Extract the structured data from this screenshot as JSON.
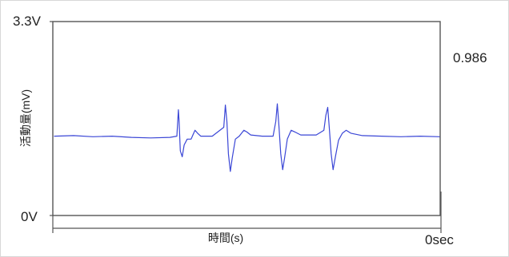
{
  "chart_data": {
    "type": "line",
    "title": "",
    "ylabel": "活動量(mV)",
    "xlabel": "時間(s)",
    "y_top_label": "3.3V",
    "y_bottom_label": "0V",
    "x_end_label": "0sec",
    "current_value": "0.986",
    "ylim": [
      0,
      3.3
    ],
    "grid": false,
    "series": [
      {
        "color": "#3a46d6",
        "points": [
          [
            0.0,
            1.35
          ],
          [
            0.05,
            1.36
          ],
          [
            0.1,
            1.34
          ],
          [
            0.15,
            1.35
          ],
          [
            0.2,
            1.33
          ],
          [
            0.25,
            1.32
          ],
          [
            0.3,
            1.33
          ],
          [
            0.318,
            1.35
          ],
          [
            0.322,
            1.8
          ],
          [
            0.324,
            1.6
          ],
          [
            0.327,
            1.1
          ],
          [
            0.332,
            1.0
          ],
          [
            0.337,
            1.2
          ],
          [
            0.345,
            1.3
          ],
          [
            0.355,
            1.3
          ],
          [
            0.365,
            1.45
          ],
          [
            0.372,
            1.4
          ],
          [
            0.38,
            1.35
          ],
          [
            0.41,
            1.35
          ],
          [
            0.44,
            1.5
          ],
          [
            0.444,
            1.88
          ],
          [
            0.448,
            1.6
          ],
          [
            0.452,
            1.05
          ],
          [
            0.457,
            0.75
          ],
          [
            0.462,
            0.98
          ],
          [
            0.47,
            1.3
          ],
          [
            0.48,
            1.35
          ],
          [
            0.492,
            1.45
          ],
          [
            0.5,
            1.42
          ],
          [
            0.51,
            1.37
          ],
          [
            0.54,
            1.35
          ],
          [
            0.568,
            1.35
          ],
          [
            0.575,
            1.6
          ],
          [
            0.579,
            1.9
          ],
          [
            0.583,
            1.55
          ],
          [
            0.588,
            1.05
          ],
          [
            0.593,
            0.78
          ],
          [
            0.598,
            0.98
          ],
          [
            0.605,
            1.3
          ],
          [
            0.615,
            1.45
          ],
          [
            0.625,
            1.42
          ],
          [
            0.64,
            1.37
          ],
          [
            0.68,
            1.37
          ],
          [
            0.7,
            1.45
          ],
          [
            0.705,
            1.7
          ],
          [
            0.71,
            1.84
          ],
          [
            0.714,
            1.5
          ],
          [
            0.719,
            1.05
          ],
          [
            0.724,
            0.78
          ],
          [
            0.73,
            1.0
          ],
          [
            0.738,
            1.28
          ],
          [
            0.748,
            1.4
          ],
          [
            0.758,
            1.45
          ],
          [
            0.77,
            1.4
          ],
          [
            0.8,
            1.36
          ],
          [
            0.85,
            1.35
          ],
          [
            0.9,
            1.34
          ],
          [
            0.95,
            1.35
          ],
          [
            1.0,
            1.34
          ]
        ]
      }
    ]
  }
}
